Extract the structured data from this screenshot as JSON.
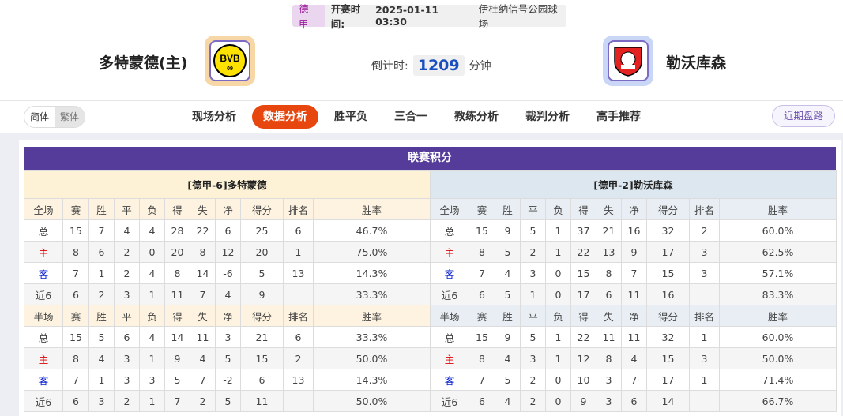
{
  "match": {
    "league": "德甲",
    "time_label": "开赛时间:",
    "time": "2025-01-11 03:30",
    "venue": "伊杜纳信号公园球场",
    "home": "多特蒙德(主)",
    "away": "勒沃库森",
    "countdown_label": "倒计时:",
    "countdown": "1209",
    "countdown_unit": "分钟",
    "home_logo": "BVB 09",
    "away_logo": "Bayer 04 Leverkusen"
  },
  "lang": {
    "simplified": "简体",
    "traditional": "繁体"
  },
  "tabs": [
    {
      "label": "现场分析"
    },
    {
      "label": "数据分析",
      "active": true
    },
    {
      "label": "胜平负"
    },
    {
      "label": "三合一"
    },
    {
      "label": "教练分析"
    },
    {
      "label": "裁判分析"
    },
    {
      "label": "高手推荐"
    }
  ],
  "recent_button": "近期盘路",
  "section_title": "联赛积分",
  "colors": {
    "accent": "#e8460f",
    "header": "#553c9a",
    "home": "#e00000",
    "away": "#0a1fd0"
  },
  "tables": [
    {
      "title": "[德甲-6]多特蒙德",
      "full_header": [
        "全场",
        "赛",
        "胜",
        "平",
        "负",
        "得",
        "失",
        "净",
        "得分",
        "排名",
        "胜率"
      ],
      "full_rows": [
        [
          "总",
          "15",
          "7",
          "4",
          "4",
          "28",
          "22",
          "6",
          "25",
          "6",
          "46.7%"
        ],
        [
          "主",
          "8",
          "6",
          "2",
          "0",
          "20",
          "8",
          "12",
          "20",
          "1",
          "75.0%"
        ],
        [
          "客",
          "7",
          "1",
          "2",
          "4",
          "8",
          "14",
          "-6",
          "5",
          "13",
          "14.3%"
        ],
        [
          "近6",
          "6",
          "2",
          "3",
          "1",
          "11",
          "7",
          "4",
          "9",
          "",
          "33.3%"
        ]
      ],
      "half_header": [
        "半场",
        "赛",
        "胜",
        "平",
        "负",
        "得",
        "失",
        "净",
        "得分",
        "排名",
        "胜率"
      ],
      "half_rows": [
        [
          "总",
          "15",
          "5",
          "6",
          "4",
          "14",
          "11",
          "3",
          "21",
          "6",
          "33.3%"
        ],
        [
          "主",
          "8",
          "4",
          "3",
          "1",
          "9",
          "4",
          "5",
          "15",
          "2",
          "50.0%"
        ],
        [
          "客",
          "7",
          "1",
          "3",
          "3",
          "5",
          "7",
          "-2",
          "6",
          "13",
          "14.3%"
        ],
        [
          "近6",
          "6",
          "3",
          "2",
          "1",
          "7",
          "2",
          "5",
          "11",
          "",
          "50.0%"
        ]
      ]
    },
    {
      "title": "[德甲-2]勒沃库森",
      "full_header": [
        "全场",
        "赛",
        "胜",
        "平",
        "负",
        "得",
        "失",
        "净",
        "得分",
        "排名",
        "胜率"
      ],
      "full_rows": [
        [
          "总",
          "15",
          "9",
          "5",
          "1",
          "37",
          "21",
          "16",
          "32",
          "2",
          "60.0%"
        ],
        [
          "主",
          "8",
          "5",
          "2",
          "1",
          "22",
          "13",
          "9",
          "17",
          "3",
          "62.5%"
        ],
        [
          "客",
          "7",
          "4",
          "3",
          "0",
          "15",
          "8",
          "7",
          "15",
          "3",
          "57.1%"
        ],
        [
          "近6",
          "6",
          "5",
          "1",
          "0",
          "17",
          "6",
          "11",
          "16",
          "",
          "83.3%"
        ]
      ],
      "half_header": [
        "半场",
        "赛",
        "胜",
        "平",
        "负",
        "得",
        "失",
        "净",
        "得分",
        "排名",
        "胜率"
      ],
      "half_rows": [
        [
          "总",
          "15",
          "9",
          "5",
          "1",
          "22",
          "11",
          "11",
          "32",
          "1",
          "60.0%"
        ],
        [
          "主",
          "8",
          "4",
          "3",
          "1",
          "12",
          "8",
          "4",
          "15",
          "3",
          "50.0%"
        ],
        [
          "客",
          "7",
          "5",
          "2",
          "0",
          "10",
          "3",
          "7",
          "17",
          "1",
          "71.4%"
        ],
        [
          "近6",
          "6",
          "4",
          "2",
          "0",
          "9",
          "3",
          "6",
          "14",
          "",
          "66.7%"
        ]
      ]
    }
  ]
}
